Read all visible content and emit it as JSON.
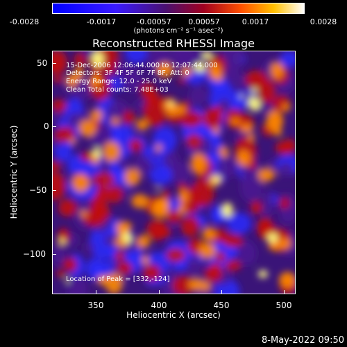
{
  "colorbar": {
    "labels": [
      "-0.0028",
      "-0.0017",
      "-0.00057",
      "0.00057",
      "0.0017",
      "0.0028"
    ],
    "units": "(photons cm⁻² s⁻¹ asec⁻²)"
  },
  "title": "Reconstructed RHESSI Image",
  "info": {
    "time": "15-Dec-2006 12:06:44.000 to 12:07:44.000",
    "detectors": "Detectors: 3F 4F 5F 6F 7F 8F, Att: 0",
    "energy": "Energy Range: 12.0 - 25.0 keV",
    "clean": "Clean    Total counts: 7.48E+03",
    "peak": "Location of Peak = [332,-124]"
  },
  "axes": {
    "xlabel": "Heliocentric X (arcsec)",
    "ylabel": "Heliocentric Y (arcsec)",
    "xticks": [
      "350",
      "400",
      "450",
      "500"
    ],
    "yticks": [
      "50",
      "0",
      "−50",
      "−100"
    ]
  },
  "timestamp": "8-May-2022 09:50",
  "colors": {
    "blue": "#2a2aff",
    "purple": "#4a1a90",
    "red": "#c01010",
    "orange": "#ff8c00",
    "yellow": "#ffff80"
  }
}
